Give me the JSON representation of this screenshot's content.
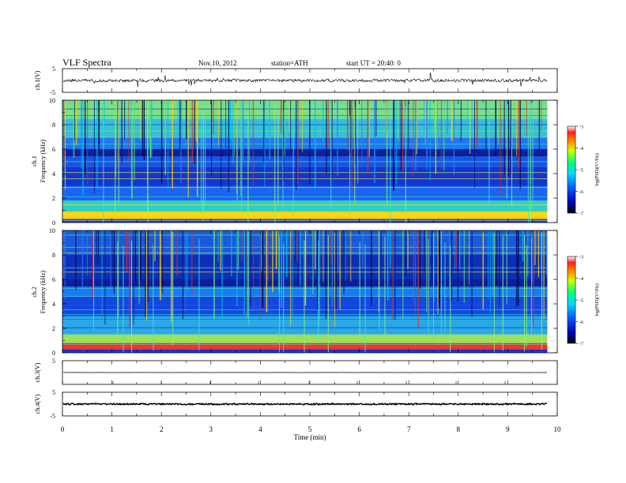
{
  "header": {
    "title": "VLF Spectra",
    "date": "Nov.10, 2012",
    "station": "station=ATH",
    "start": "start  UT =  20:40: 0"
  },
  "chart_data": [
    {
      "type": "line",
      "panel": "ch1",
      "ylabel": "ch.1(V)",
      "ylim": [
        -5,
        5
      ],
      "yticks": [
        "5",
        "-5"
      ],
      "baseline": 0,
      "description_series": "noisy waveform around 0 V with spikes"
    },
    {
      "type": "heatmap",
      "panel": "spec1",
      "ylabel_lines": [
        "ch.1",
        "Frequency  (kHz)"
      ],
      "ylim": [
        0,
        10
      ],
      "yticks": [
        "0",
        "2",
        "4",
        "6",
        "8",
        "10"
      ],
      "colorbar": {
        "label": "log(PSD)(V²/Hz)",
        "range": [
          -7,
          -3
        ],
        "ticks": [
          "-3",
          "-4",
          "-5",
          "-6",
          "-7"
        ]
      },
      "bands": [
        {
          "from": 0.0,
          "to": 0.3,
          "color": "#0a3cff"
        },
        {
          "from": 0.3,
          "to": 0.9,
          "color": "#ffd400"
        },
        {
          "from": 0.9,
          "to": 1.8,
          "color": "#2fd0c4"
        },
        {
          "from": 1.8,
          "to": 3.0,
          "color": "#1a64f0"
        },
        {
          "from": 3.0,
          "to": 4.6,
          "color": "#1038d0"
        },
        {
          "from": 4.6,
          "to": 5.4,
          "color": "#1454e6"
        },
        {
          "from": 5.4,
          "to": 6.0,
          "color": "#0a1f9c"
        },
        {
          "from": 6.0,
          "to": 7.0,
          "color": "#1e78f0"
        },
        {
          "from": 7.0,
          "to": 8.5,
          "color": "#36c0d8"
        },
        {
          "from": 8.5,
          "to": 10.0,
          "color": "#7ae08a"
        }
      ]
    },
    {
      "type": "heatmap",
      "panel": "spec2",
      "ylabel_lines": [
        "ch.2",
        "Frequency  (kHz)"
      ],
      "ylim": [
        0,
        10
      ],
      "yticks": [
        "0",
        "2",
        "4",
        "6",
        "8",
        "10"
      ],
      "colorbar": {
        "label": "log(PSD)(V²/Hz)",
        "range": [
          -7,
          -3
        ],
        "ticks": [
          "-3",
          "-4",
          "-5",
          "-6",
          "-7"
        ]
      },
      "bands": [
        {
          "from": 0.0,
          "to": 0.3,
          "color": "#0a3cff"
        },
        {
          "from": 0.3,
          "to": 0.8,
          "color": "#ff3020"
        },
        {
          "from": 0.8,
          "to": 1.5,
          "color": "#9be05a"
        },
        {
          "from": 1.5,
          "to": 3.0,
          "color": "#2aa8e8"
        },
        {
          "from": 3.0,
          "to": 4.6,
          "color": "#1446e0"
        },
        {
          "from": 4.6,
          "to": 5.4,
          "color": "#1e78f0"
        },
        {
          "from": 5.4,
          "to": 6.0,
          "color": "#0a1f9c"
        },
        {
          "from": 6.0,
          "to": 8.0,
          "color": "#0e2fb8"
        },
        {
          "from": 8.0,
          "to": 10.0,
          "color": "#1a5ad8"
        }
      ]
    },
    {
      "type": "line",
      "panel": "ch3",
      "ylabel": "ch.3(V)",
      "ylim": [
        -5,
        5
      ],
      "yticks": [
        "5",
        "-5"
      ],
      "baseline": 0
    },
    {
      "type": "line",
      "panel": "ch4",
      "ylabel": "ch.4(V)",
      "ylim": [
        -5,
        5
      ],
      "yticks": [
        "5",
        "-5"
      ],
      "baseline": 0
    }
  ],
  "xaxis": {
    "label": "Time  (min)",
    "range": [
      0,
      10
    ],
    "data_end": 9.8,
    "ticks": [
      "0",
      "1",
      "2",
      "3",
      "4",
      "5",
      "6",
      "7",
      "8",
      "9",
      "10"
    ]
  },
  "colors": {
    "scale": [
      "#000000",
      "#0000b4",
      "#0050ff",
      "#00c8ff",
      "#00ff80",
      "#c8ff00",
      "#ffc800",
      "#ff2000",
      "#ffffff"
    ]
  }
}
